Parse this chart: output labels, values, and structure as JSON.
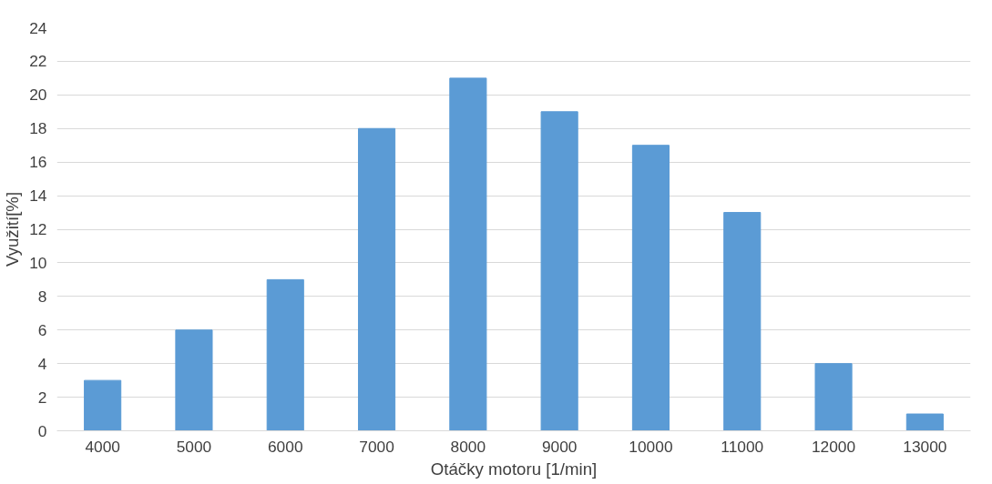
{
  "chart_data": {
    "type": "bar",
    "xlabel": "Otáčky motoru [1/min]",
    "ylabel": "Využití[%]",
    "categories": [
      "4000",
      "5000",
      "6000",
      "7000",
      "8000",
      "9000",
      "10000",
      "11000",
      "12000",
      "13000"
    ],
    "values": [
      3,
      6,
      9,
      18,
      21,
      19,
      17,
      13,
      4,
      1
    ],
    "color": "#5b9bd5",
    "ylim": [
      0,
      24
    ],
    "yticks": [
      0,
      2,
      4,
      6,
      8,
      10,
      12,
      14,
      16,
      18,
      20,
      22,
      24
    ],
    "grid": "y"
  }
}
